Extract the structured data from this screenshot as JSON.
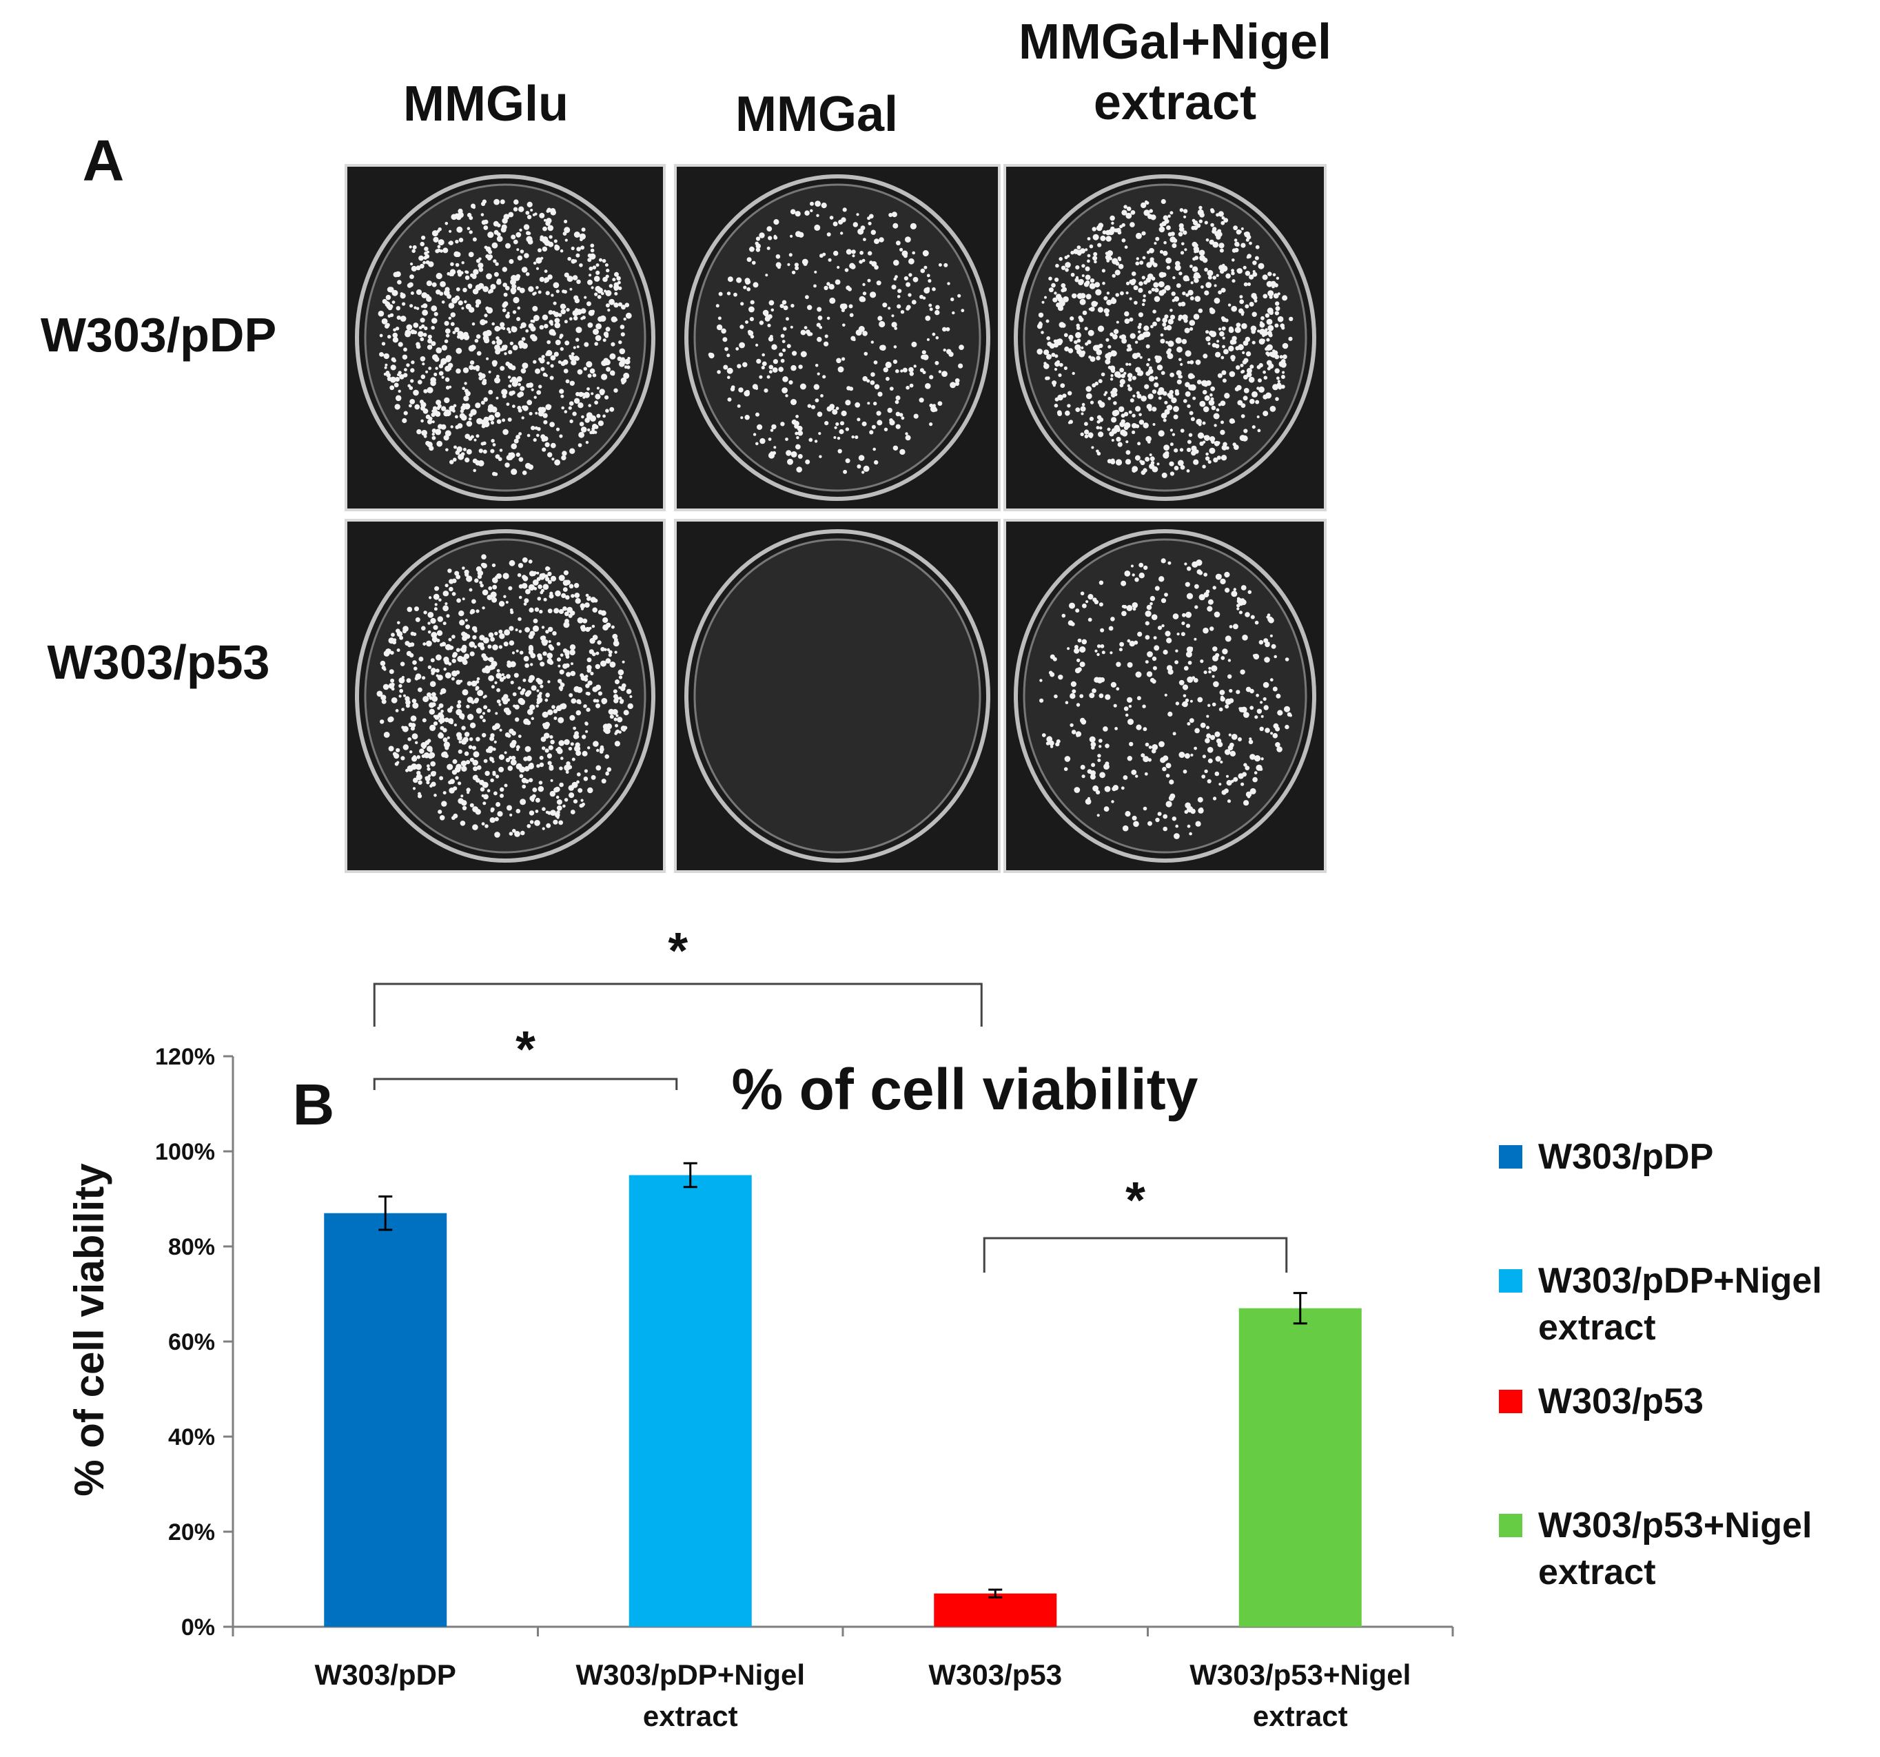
{
  "panel_a": {
    "label": "A",
    "column_headers": [
      "MMGlu",
      "MMGal",
      "MMGal+Nigel\nextract"
    ],
    "row_labels": [
      "W303/pDP",
      "W303/p53"
    ],
    "plate_images": [
      {
        "row": "W303/pDP",
        "column": "MMGlu",
        "colony_density": "high"
      },
      {
        "row": "W303/pDP",
        "column": "MMGal",
        "colony_density": "medium"
      },
      {
        "row": "W303/pDP",
        "column": "MMGal+Nigel\nextract",
        "colony_density": "high"
      },
      {
        "row": "W303/p53",
        "column": "MMGlu",
        "colony_density": "high"
      },
      {
        "row": "W303/p53",
        "column": "MMGal",
        "colony_density": "none"
      },
      {
        "row": "W303/p53",
        "column": "MMGal+Nigel\nextract",
        "colony_density": "medium"
      }
    ]
  },
  "chart_data": {
    "type": "bar",
    "panel_label": "B",
    "title": "% of cell viability",
    "xlabel": "",
    "ylabel": "% of cell viability",
    "ylim": [
      0,
      120
    ],
    "y_ticks": [
      0,
      20,
      40,
      60,
      80,
      100,
      120
    ],
    "y_tick_labels": [
      "0%",
      "20%",
      "40%",
      "60%",
      "80%",
      "100%",
      "120%"
    ],
    "categories": [
      "W303/pDP",
      "W303/pDP+Nigel\nextract",
      "W303/p53",
      "W303/p53+Nigel\nextract"
    ],
    "values": [
      87,
      95,
      7,
      67
    ],
    "error": [
      3.5,
      2.5,
      0.8,
      3.2
    ],
    "colors": [
      "#0070c0",
      "#00b0f0",
      "#ff0000",
      "#66cc44"
    ],
    "legend": {
      "position": "right",
      "entries": [
        "W303/pDP",
        "W303/pDP+Nigel\nextract",
        "W303/p53",
        "W303/p53+Nigel\nextract"
      ]
    },
    "grid": false,
    "significance": [
      {
        "from": 0,
        "to": 2,
        "label": "*"
      },
      {
        "from": 0,
        "to": 1,
        "label": "*"
      },
      {
        "from": 2,
        "to": 3,
        "label": "*"
      }
    ]
  }
}
